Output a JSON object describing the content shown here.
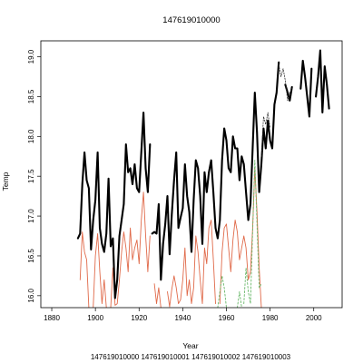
{
  "chart_data": {
    "type": "line",
    "title": "147619010000",
    "xlabel": "Year",
    "ylabel": "Temp",
    "xlim": [
      1875,
      2013
    ],
    "ylim": [
      15.85,
      19.2
    ],
    "xticks": [
      "1880",
      "1900",
      "1920",
      "1940",
      "1960",
      "1980",
      "2000"
    ],
    "yticks": [
      "16.0",
      "16.5",
      "17.0",
      "17.5",
      "18.0",
      "18.5",
      "19.0"
    ],
    "legend_placement": "bottom",
    "legend": [
      "147619010000",
      "147619010001",
      "147619010002",
      "147619010003"
    ],
    "colors": {
      "147619010000": "#000000",
      "147619010001": "#e06a4a",
      "147619010002": "#6ab86a",
      "147619010003": "#333333"
    },
    "series": [
      {
        "name": "147619010000",
        "values": [
          [
            1892,
            16.72
          ],
          [
            1893,
            16.78
          ],
          [
            1894,
            17.4
          ],
          [
            1895,
            17.8
          ],
          [
            1896,
            17.45
          ],
          [
            1897,
            17.35
          ],
          [
            1898,
            16.58
          ],
          [
            1899,
            16.95
          ],
          [
            1900,
            17.2
          ],
          [
            1901,
            17.8
          ],
          [
            1902,
            16.85
          ],
          [
            1903,
            16.65
          ],
          [
            1904,
            16.55
          ],
          [
            1905,
            16.78
          ],
          [
            1906,
            17.47
          ],
          [
            1907,
            16.62
          ],
          [
            1908,
            16.72
          ],
          [
            1909,
            15.97
          ],
          [
            1910,
            16.2
          ],
          [
            1911,
            16.75
          ],
          [
            1912,
            16.95
          ],
          [
            1913,
            17.15
          ],
          [
            1914,
            17.9
          ],
          [
            1915,
            17.55
          ],
          [
            1916,
            17.6
          ],
          [
            1917,
            17.4
          ],
          [
            1918,
            17.65
          ],
          [
            1919,
            17.35
          ],
          [
            1920,
            17.3
          ],
          [
            1921,
            17.8
          ],
          [
            1922,
            18.3
          ],
          [
            1923,
            17.6
          ],
          [
            1924,
            17.3
          ],
          [
            1925,
            17.9
          ],
          null,
          [
            1926,
            16.78
          ],
          [
            1927,
            16.8
          ],
          [
            1928,
            16.78
          ],
          [
            1929,
            17.15
          ],
          [
            1930,
            16.2
          ],
          [
            1931,
            16.65
          ],
          [
            1932,
            16.9
          ],
          [
            1933,
            17.25
          ],
          [
            1934,
            16.52
          ],
          [
            1935,
            17.02
          ],
          [
            1936,
            17.45
          ],
          [
            1937,
            17.8
          ],
          [
            1938,
            16.85
          ],
          [
            1939,
            16.98
          ],
          [
            1940,
            17.1
          ],
          [
            1941,
            17.65
          ],
          [
            1942,
            17.25
          ],
          [
            1943,
            17.05
          ],
          [
            1944,
            16.55
          ],
          [
            1945,
            17.2
          ],
          [
            1946,
            17.7
          ],
          [
            1947,
            17.6
          ],
          [
            1948,
            17.25
          ],
          [
            1949,
            16.65
          ],
          [
            1950,
            17.55
          ],
          [
            1951,
            17.3
          ],
          [
            1952,
            17.55
          ],
          [
            1953,
            17.7
          ],
          [
            1954,
            17.3
          ],
          [
            1955,
            16.85
          ],
          [
            1956,
            16.72
          ],
          [
            1957,
            16.95
          ],
          [
            1958,
            17.7
          ],
          [
            1959,
            18.1
          ],
          [
            1960,
            17.95
          ],
          [
            1961,
            17.6
          ],
          [
            1962,
            17.55
          ],
          [
            1963,
            18.0
          ],
          [
            1964,
            17.85
          ],
          [
            1965,
            17.85
          ],
          [
            1966,
            17.45
          ],
          [
            1967,
            17.75
          ],
          [
            1968,
            17.65
          ],
          [
            1969,
            17.3
          ],
          [
            1970,
            16.95
          ],
          [
            1971,
            17.15
          ],
          [
            1972,
            17.85
          ],
          [
            1973,
            18.55
          ],
          [
            1974,
            18.05
          ],
          [
            1975,
            17.3
          ],
          [
            1976,
            17.65
          ],
          [
            1977,
            18.1
          ],
          [
            1978,
            17.85
          ],
          [
            1979,
            18.2
          ],
          [
            1980,
            17.95
          ],
          [
            1981,
            17.85
          ],
          [
            1982,
            18.4
          ],
          [
            1983,
            18.55
          ],
          [
            1984,
            18.93
          ],
          null,
          [
            1987,
            18.65
          ],
          [
            1988,
            18.55
          ],
          [
            1989,
            18.45
          ],
          [
            1990,
            18.62
          ],
          null,
          [
            1994,
            18.6
          ],
          [
            1995,
            18.95
          ],
          [
            1996,
            18.75
          ],
          [
            1997,
            18.5
          ],
          [
            1998,
            18.25
          ],
          [
            1999,
            18.85
          ],
          null,
          [
            2001,
            18.5
          ],
          [
            2002,
            18.75
          ],
          [
            2003,
            19.08
          ],
          [
            2004,
            18.3
          ],
          [
            2005,
            18.88
          ],
          [
            2006,
            18.65
          ],
          [
            2007,
            18.35
          ]
        ]
      },
      {
        "name": "147619010001",
        "values": [
          [
            1893,
            16.2
          ],
          [
            1894,
            16.8
          ],
          [
            1895,
            16.55
          ],
          [
            1896,
            16.45
          ],
          [
            1897,
            15.85
          ],
          null,
          [
            1899,
            15.85
          ],
          [
            1900,
            16.5
          ],
          [
            1901,
            16.78
          ],
          [
            1902,
            16.3
          ],
          [
            1903,
            15.9
          ],
          [
            1904,
            16.2
          ],
          [
            1905,
            15.85
          ],
          null,
          [
            1907,
            15.85
          ],
          [
            1908,
            16.35
          ],
          [
            1909,
            15.88
          ],
          [
            1910,
            15.9
          ],
          [
            1911,
            16.2
          ],
          [
            1912,
            16.55
          ],
          [
            1913,
            16.8
          ],
          [
            1914,
            16.6
          ],
          [
            1915,
            16.3
          ],
          [
            1916,
            16.85
          ],
          [
            1917,
            16.45
          ],
          [
            1918,
            16.6
          ],
          [
            1919,
            16.7
          ],
          [
            1920,
            16.4
          ],
          [
            1921,
            16.95
          ],
          [
            1922,
            17.3
          ],
          [
            1923,
            16.75
          ],
          [
            1924,
            16.3
          ],
          [
            1925,
            16.75
          ],
          null,
          [
            1927,
            16.15
          ],
          [
            1928,
            15.9
          ],
          [
            1929,
            16.1
          ],
          [
            1930,
            15.85
          ],
          null,
          [
            1933,
            16.05
          ],
          [
            1934,
            15.86
          ],
          [
            1935,
            16.08
          ],
          [
            1936,
            16.25
          ],
          [
            1937,
            16.1
          ],
          [
            1938,
            15.9
          ],
          [
            1939,
            15.95
          ],
          [
            1940,
            16.2
          ],
          [
            1941,
            16.6
          ],
          [
            1942,
            16.0
          ],
          [
            1943,
            16.2
          ],
          [
            1944,
            15.9
          ],
          [
            1945,
            16.1
          ],
          [
            1946,
            16.75
          ],
          [
            1947,
            16.55
          ],
          [
            1948,
            16.2
          ],
          [
            1949,
            15.9
          ],
          [
            1950,
            16.6
          ],
          [
            1951,
            16.4
          ],
          [
            1952,
            16.85
          ],
          [
            1953,
            16.95
          ],
          [
            1954,
            16.45
          ],
          [
            1955,
            15.9
          ],
          null,
          [
            1957,
            15.9
          ],
          [
            1958,
            16.55
          ],
          [
            1959,
            16.85
          ],
          [
            1960,
            16.9
          ],
          [
            1961,
            16.6
          ],
          [
            1962,
            16.3
          ],
          [
            1963,
            16.7
          ],
          [
            1964,
            16.95
          ],
          [
            1965,
            16.8
          ],
          [
            1966,
            16.45
          ],
          [
            1967,
            16.6
          ],
          [
            1968,
            16.75
          ],
          [
            1969,
            16.6
          ],
          [
            1970,
            16.2
          ],
          [
            1971,
            16.3
          ],
          [
            1972,
            16.85
          ],
          [
            1973,
            17.6
          ],
          [
            1974,
            17.05
          ],
          [
            1975,
            16.35
          ],
          [
            1976,
            15.85
          ]
        ]
      },
      {
        "name": "147619010002",
        "values": [
          [
            1956,
            15.85
          ],
          [
            1958,
            16.25
          ],
          [
            1959,
            16.1
          ],
          [
            1960,
            15.85
          ],
          null,
          [
            1965,
            15.85
          ],
          [
            1966,
            16.05
          ],
          [
            1967,
            15.85
          ],
          null,
          [
            1968,
            15.9
          ],
          [
            1969,
            16.35
          ],
          [
            1970,
            16.05
          ],
          [
            1971,
            15.9
          ],
          [
            1972,
            16.8
          ],
          [
            1973,
            17.7
          ],
          [
            1974,
            16.9
          ],
          [
            1975,
            16.1
          ],
          [
            1976,
            16.15
          ]
        ]
      },
      {
        "name": "147619010003",
        "values": [
          [
            1976,
            17.75
          ],
          [
            1977,
            18.25
          ],
          [
            1978,
            18.15
          ],
          [
            1979,
            18.3
          ],
          [
            1980,
            18.1
          ],
          null,
          [
            1984,
            18.9
          ],
          [
            1985,
            18.75
          ],
          [
            1986,
            18.85
          ],
          [
            1987,
            18.7
          ],
          [
            1988,
            18.45
          ],
          [
            1989,
            18.55
          ],
          [
            1990,
            18.6
          ]
        ]
      }
    ]
  }
}
